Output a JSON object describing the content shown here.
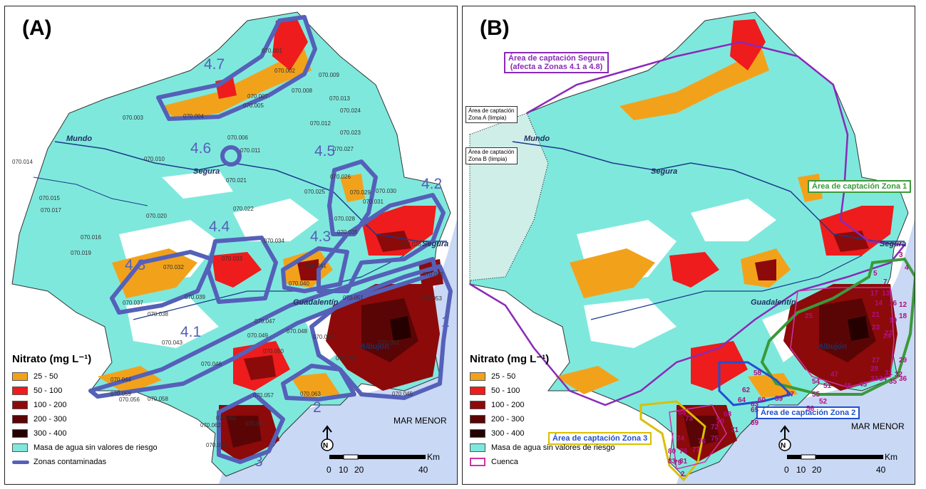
{
  "panel_a": {
    "label": "(A)",
    "legend_title": "Nitrato (mg L⁻¹)",
    "legend_items": [
      {
        "label": "25 - 50",
        "color": "#f2a21a"
      },
      {
        "label": "50 - 100",
        "color": "#ee1c1c"
      },
      {
        "label": "100 - 200",
        "color": "#8c0a0a"
      },
      {
        "label": "200 - 300",
        "color": "#5a0505"
      },
      {
        "label": "300 - 400",
        "color": "#240000"
      },
      {
        "label": "Masa de agua sin valores de riesgo",
        "color": "#7fe8dd"
      },
      {
        "label": "Zonas contaminadas",
        "color": "#5560b8"
      }
    ],
    "zones": [
      "4.7",
      "4.6",
      "4.5",
      "4.2",
      "4.4",
      "4.3",
      "4.8",
      "4.1",
      "1",
      "2",
      "3"
    ],
    "rivers": [
      "Mundo",
      "Segura",
      "Segura",
      "Guadalentín",
      "Albujón"
    ],
    "sea_label": "MAR MENOR",
    "codes": [
      "070.001",
      "070.002",
      "070.009",
      "070.008",
      "070.007",
      "070.005",
      "070.004",
      "070.003",
      "070.013",
      "070.024",
      "070.012",
      "070.023",
      "070.006",
      "070.011",
      "070.027",
      "070.014",
      "070.010",
      "070.026",
      "070.021",
      "070.025",
      "070.029",
      "070.031",
      "070.030",
      "070.015",
      "070.017",
      "070.022",
      "070.028",
      "070.020",
      "070.035",
      "070.016",
      "070.036",
      "070.034",
      "070.033",
      "070.019",
      "070.032",
      "070.041",
      "070.040",
      "070.042",
      "070.039",
      "070.037",
      "070.051",
      "070.053",
      "070.038",
      "070.047",
      "070.048",
      "070.049",
      "070.055",
      "070.043",
      "070.052",
      "070.054",
      "070.050",
      "070.046",
      "070.044",
      "070.057",
      "070.056",
      "070.058",
      "070.063",
      "070.045",
      "070.059",
      "070.061",
      "070.060",
      "070.062",
      "070.018"
    ],
    "scale": {
      "unit": "Km",
      "ticks": [
        "0",
        "10",
        "20",
        "40"
      ],
      "north": "N"
    }
  },
  "panel_b": {
    "label": "(B)",
    "legend_title": "Nitrato (mg L⁻¹)",
    "legend_items": [
      {
        "label": "25 - 50",
        "color": "#f2a21a"
      },
      {
        "label": "50 - 100",
        "color": "#ee1c1c"
      },
      {
        "label": "100 - 200",
        "color": "#8c0a0a"
      },
      {
        "label": "200 - 300",
        "color": "#5a0505"
      },
      {
        "label": "300 - 400",
        "color": "#240000"
      },
      {
        "label": "Masa de agua sin valores de riesgo",
        "color": "#7fe8dd"
      },
      {
        "label": "Cuenca",
        "color": "#cc33aa"
      }
    ],
    "capture_labels": [
      {
        "text": "Área de captación Segura\n(afecta a Zonas 4.1 a 4.8)",
        "color": "#8a2ab8"
      },
      {
        "text": "Área de captación Zona 1",
        "color": "#3a9a3a"
      },
      {
        "text": "Área de captación Zona 2",
        "color": "#2050d0"
      },
      {
        "text": "Área de captación Zona 3",
        "color": "#d8c000"
      }
    ],
    "small_boxes": [
      "Área de captación\nZona A (limpia)",
      "Área de captación\nZona B (limpia)"
    ],
    "rivers": [
      "Mundo",
      "Segura",
      "Segura",
      "Guadalentín",
      "Albujón"
    ],
    "sea_label": "MAR MENOR",
    "basin_numbers": [
      "3",
      "4",
      "5",
      "7",
      "17",
      "13",
      "14",
      "16",
      "12",
      "18",
      "19",
      "21",
      "22",
      "25",
      "23",
      "24",
      "29",
      "27",
      "28",
      "31",
      "32",
      "33",
      "34",
      "35",
      "36",
      "47",
      "48",
      "51",
      "45",
      "54",
      "55",
      "52",
      "56",
      "57",
      "58",
      "59",
      "60",
      "62",
      "63",
      "64",
      "65",
      "69",
      "68",
      "70",
      "71",
      "72",
      "73",
      "74",
      "75",
      "76",
      "77",
      "78",
      "79",
      "80",
      "81",
      "83",
      "84",
      "2"
    ],
    "scale": {
      "unit": "Km",
      "ticks": [
        "0",
        "10",
        "20",
        "40"
      ],
      "north": "N"
    }
  }
}
